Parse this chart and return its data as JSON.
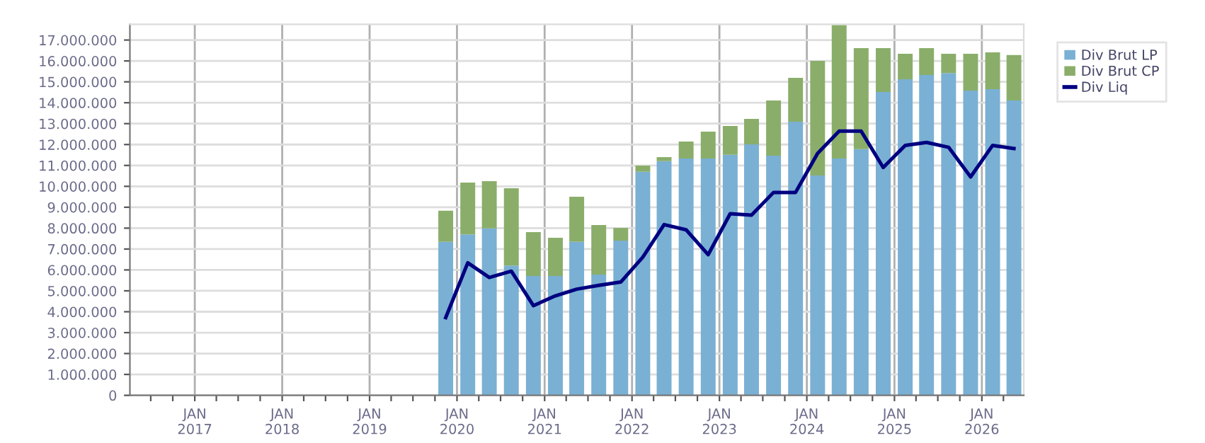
{
  "chart_data": {
    "type": "bar",
    "stacked": true,
    "x": [
      "2019-11-15",
      "2020-02-15",
      "2020-05-15",
      "2020-08-15",
      "2020-11-15",
      "2021-02-15",
      "2021-05-15",
      "2021-08-15",
      "2021-11-15",
      "2022-02-15",
      "2022-05-15",
      "2022-08-15",
      "2022-11-15",
      "2023-02-15",
      "2023-05-15",
      "2023-08-15",
      "2023-11-15",
      "2024-02-15",
      "2024-05-15",
      "2024-08-15",
      "2024-11-15",
      "2025-02-15",
      "2025-05-15",
      "2025-08-15",
      "2025-11-15",
      "2026-02-15",
      "2026-05-15"
    ],
    "series": [
      {
        "name": "Div Brut LP",
        "color": "#7ab0d4",
        "values": [
          7340000,
          7700000,
          7990000,
          6210000,
          5710000,
          5710000,
          7340000,
          5780000,
          7400000,
          10700000,
          11200000,
          11330000,
          11330000,
          11510000,
          12010000,
          11470000,
          13090000,
          10520000,
          11330000,
          11780000,
          14510000,
          15120000,
          15330000,
          15420000,
          14580000,
          14650000,
          14110000
        ]
      },
      {
        "name": "Div Brut CP",
        "color": "#8aae6a",
        "values": [
          1490000,
          2480000,
          2260000,
          3700000,
          2100000,
          1830000,
          2160000,
          2370000,
          610000,
          290000,
          200000,
          810000,
          1290000,
          1380000,
          1220000,
          2640000,
          2100000,
          5480000,
          6390000,
          4830000,
          2100000,
          1220000,
          1280000,
          920000,
          1760000,
          1760000,
          2170000
        ]
      },
      {
        "name": "Div Liq",
        "type": "line",
        "color": "#000080",
        "values": [
          3720000,
          6340000,
          5640000,
          5940000,
          4290000,
          4760000,
          5080000,
          5260000,
          5420000,
          6610000,
          8170000,
          7920000,
          6730000,
          8690000,
          8620000,
          9710000,
          9710000,
          11580000,
          12640000,
          12640000,
          10900000,
          11960000,
          12100000,
          11870000,
          10450000,
          11960000,
          11810000
        ]
      }
    ],
    "ylim": [
      0,
      17750000
    ],
    "yticks": [
      {
        "value": 0,
        "label": "0"
      },
      {
        "value": 1000000,
        "label": "1.000.000"
      },
      {
        "value": 2000000,
        "label": "2.000.000"
      },
      {
        "value": 3000000,
        "label": "3.000.000"
      },
      {
        "value": 4000000,
        "label": "4.000.000"
      },
      {
        "value": 5000000,
        "label": "5.000.000"
      },
      {
        "value": 6000000,
        "label": "6.000.000"
      },
      {
        "value": 7000000,
        "label": "7.000.000"
      },
      {
        "value": 8000000,
        "label": "8.000.000"
      },
      {
        "value": 9000000,
        "label": "9.000.000"
      },
      {
        "value": 10000000,
        "label": "10.000.000"
      },
      {
        "value": 11000000,
        "label": "11.000.000"
      },
      {
        "value": 12000000,
        "label": "12.000.000"
      },
      {
        "value": 13000000,
        "label": "13.000.000"
      },
      {
        "value": 14000000,
        "label": "14.000.000"
      },
      {
        "value": 15000000,
        "label": "15.000.000"
      },
      {
        "value": 16000000,
        "label": "16.000.000"
      },
      {
        "value": 17000000,
        "label": "17.000.000"
      }
    ],
    "xlim": [
      "2016-04-05",
      "2026-06-25"
    ],
    "xticks": [
      {
        "value": "2016-07-01",
        "label": null
      },
      {
        "value": "2016-10-01",
        "label": null
      },
      {
        "value": "2017-01-01",
        "label": "JAN\n2017"
      },
      {
        "value": "2017-04-01",
        "label": null
      },
      {
        "value": "2017-07-01",
        "label": null
      },
      {
        "value": "2017-10-01",
        "label": null
      },
      {
        "value": "2018-01-01",
        "label": "JAN\n2018"
      },
      {
        "value": "2018-04-01",
        "label": null
      },
      {
        "value": "2018-07-01",
        "label": null
      },
      {
        "value": "2018-10-01",
        "label": null
      },
      {
        "value": "2019-01-01",
        "label": "JAN\n2019"
      },
      {
        "value": "2019-04-01",
        "label": null
      },
      {
        "value": "2019-07-01",
        "label": null
      },
      {
        "value": "2019-10-01",
        "label": null
      },
      {
        "value": "2020-01-01",
        "label": "JAN\n2020"
      },
      {
        "value": "2020-04-01",
        "label": null
      },
      {
        "value": "2020-07-01",
        "label": null
      },
      {
        "value": "2020-10-01",
        "label": null
      },
      {
        "value": "2021-01-01",
        "label": "JAN\n2021"
      },
      {
        "value": "2021-04-01",
        "label": null
      },
      {
        "value": "2021-07-01",
        "label": null
      },
      {
        "value": "2021-10-01",
        "label": null
      },
      {
        "value": "2022-01-01",
        "label": "JAN\n2022"
      },
      {
        "value": "2022-04-01",
        "label": null
      },
      {
        "value": "2022-07-01",
        "label": null
      },
      {
        "value": "2022-10-01",
        "label": null
      },
      {
        "value": "2023-01-01",
        "label": "JAN\n2023"
      },
      {
        "value": "2023-04-01",
        "label": null
      },
      {
        "value": "2023-07-01",
        "label": null
      },
      {
        "value": "2023-10-01",
        "label": null
      },
      {
        "value": "2024-01-01",
        "label": "JAN\n2024"
      },
      {
        "value": "2024-04-01",
        "label": null
      },
      {
        "value": "2024-07-01",
        "label": null
      },
      {
        "value": "2024-10-01",
        "label": null
      },
      {
        "value": "2025-01-01",
        "label": "JAN\n2025"
      },
      {
        "value": "2025-04-01",
        "label": null
      },
      {
        "value": "2025-07-01",
        "label": null
      },
      {
        "value": "2025-10-01",
        "label": null
      },
      {
        "value": "2026-01-01",
        "label": "JAN\n2026"
      },
      {
        "value": "2026-04-01",
        "label": null
      }
    ],
    "grid": true,
    "legend": "right",
    "marker": "none",
    "line_style": "solid"
  }
}
